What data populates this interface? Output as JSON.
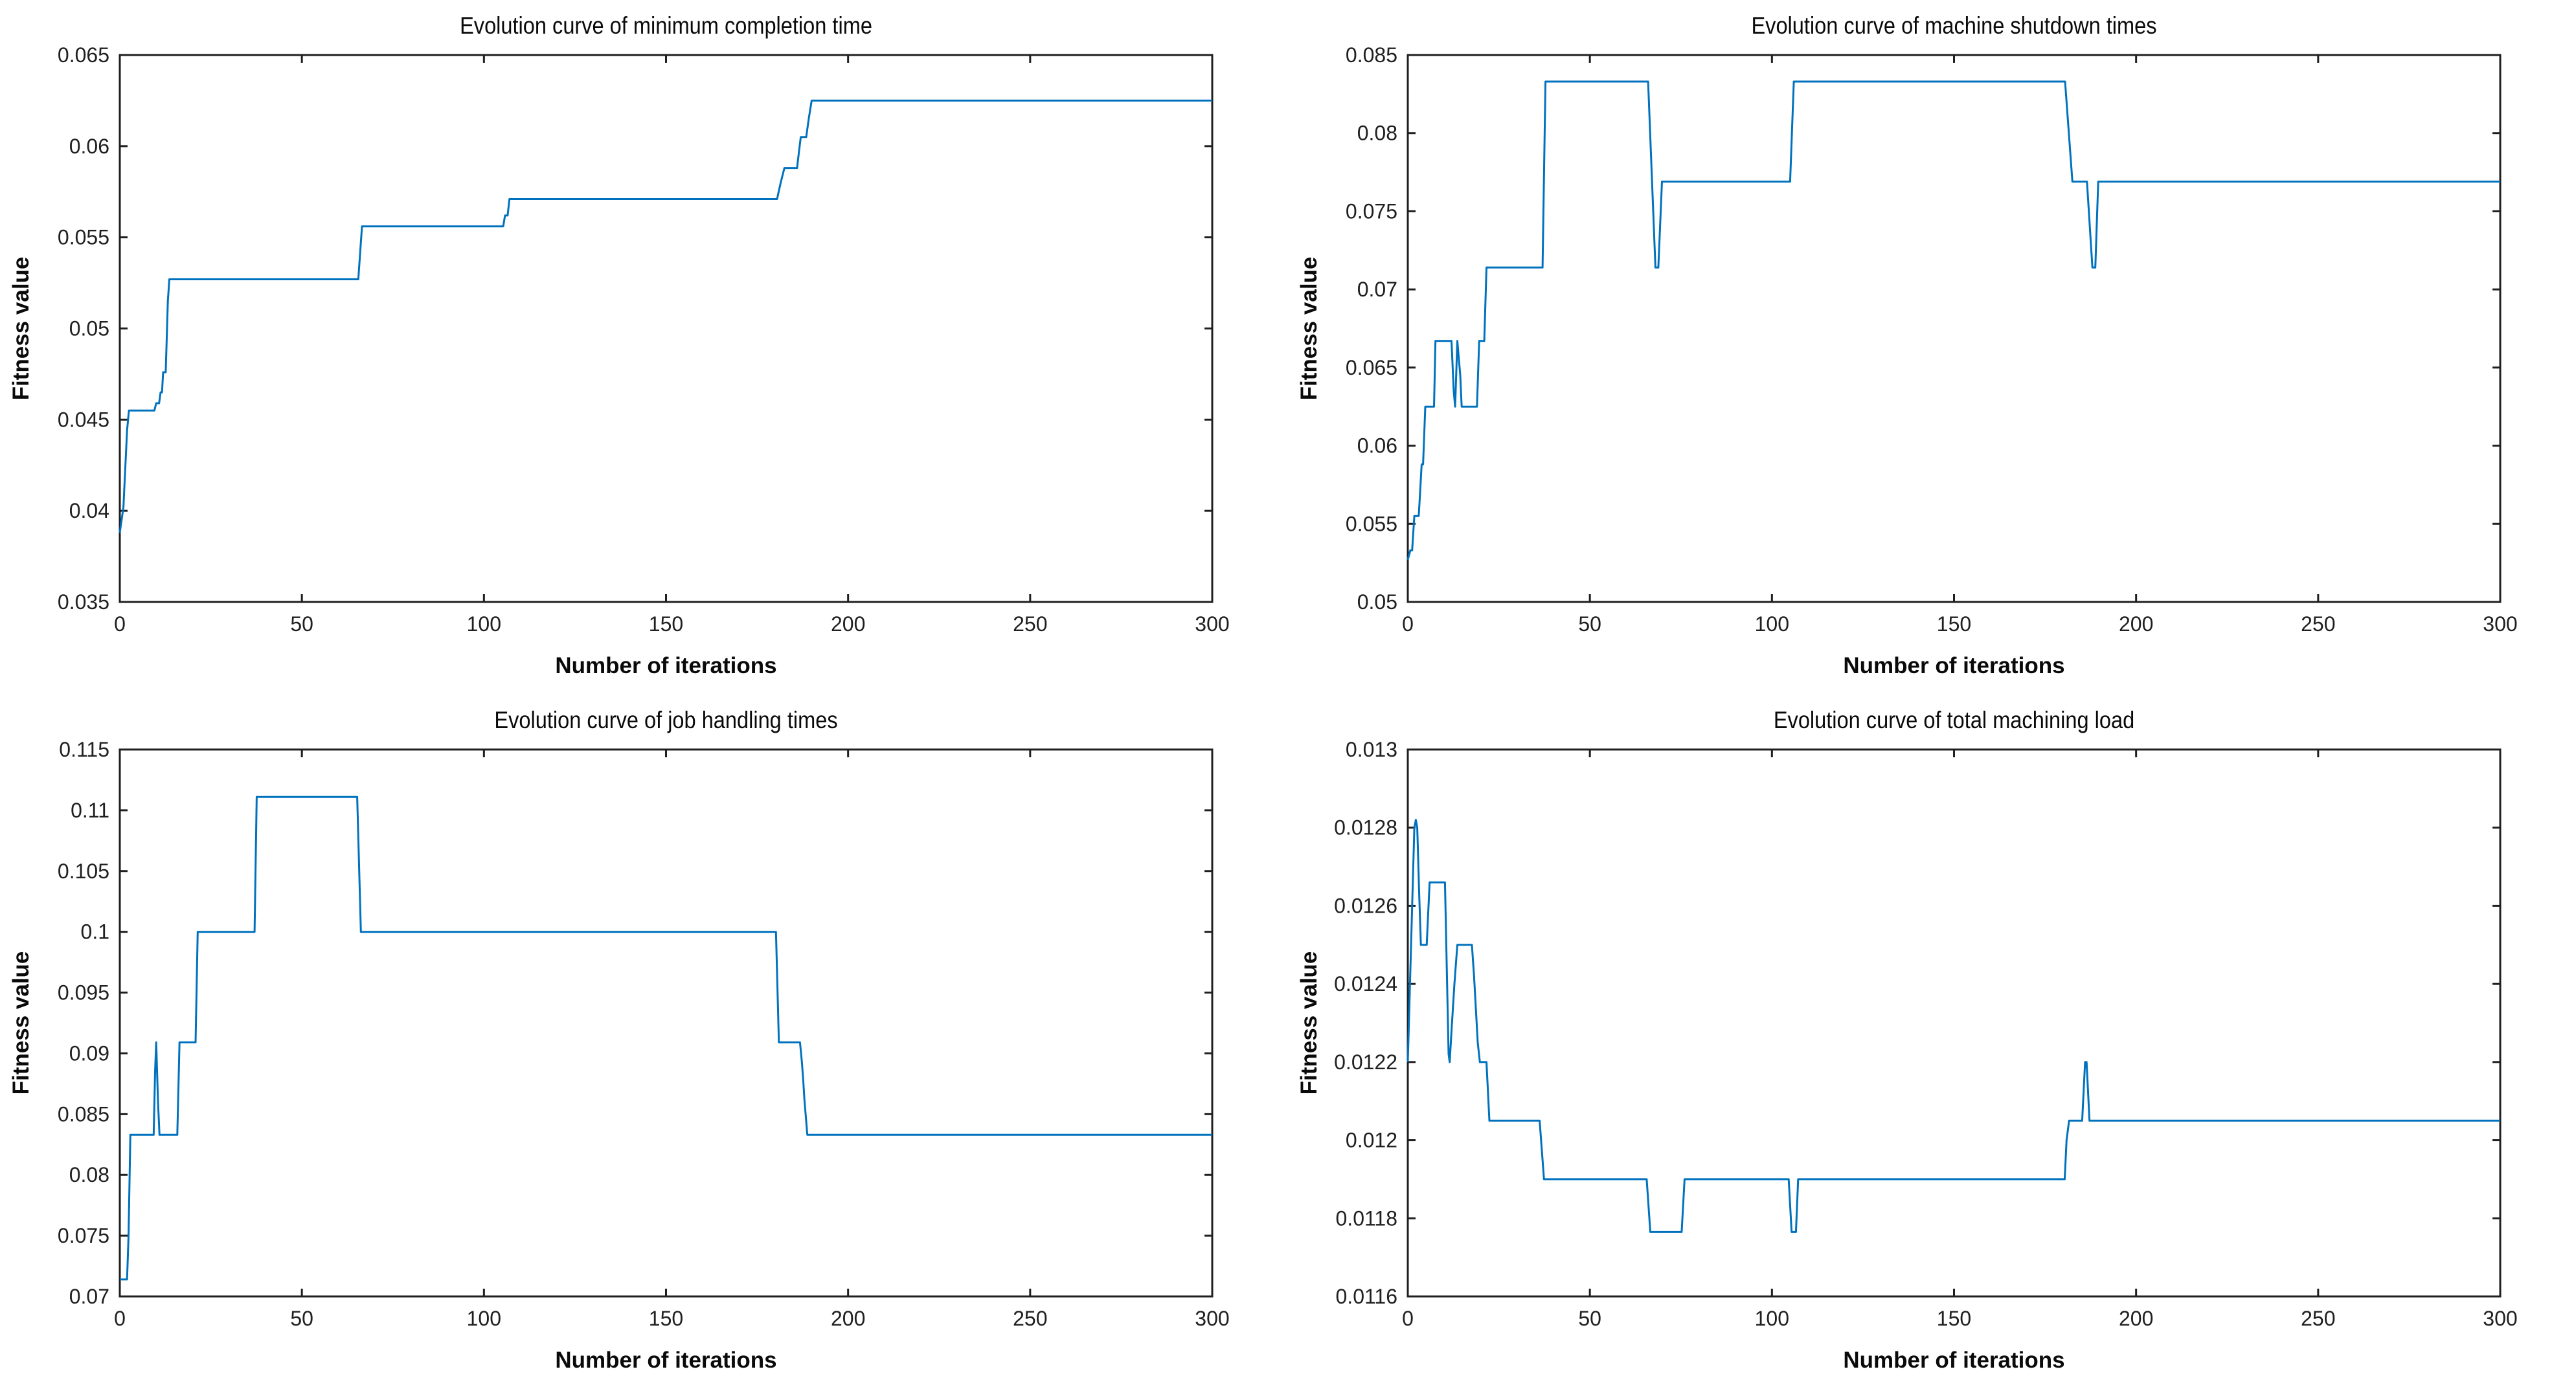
{
  "figure": {
    "background": "#ffffff",
    "layout": "2x2 grid of MATLAB-style evolution curve subplots"
  },
  "style": {
    "axis_color": "#1f1f1f",
    "text_color": "#0a0a0a",
    "line_color": "#0072BD"
  },
  "chart_data": [
    {
      "type": "line",
      "title": "Evolution curve of minimum completion time",
      "xlabel": "Number of iterations",
      "ylabel": "Fitness value",
      "xlim": [
        0,
        300
      ],
      "ylim": [
        0.035,
        0.065
      ],
      "grid": false,
      "legend": "none",
      "xticks": [
        0,
        50,
        100,
        150,
        200,
        250,
        300
      ],
      "xtick_labels": [
        "0",
        "50",
        "100",
        "150",
        "200",
        "250",
        "300"
      ],
      "yticks": [
        0.035,
        0.04,
        0.045,
        0.05,
        0.055,
        0.06,
        0.065
      ],
      "ytick_labels": [
        "0.035",
        "0.04",
        "0.045",
        "0.05",
        "0.055",
        "0.06",
        "0.065"
      ],
      "line_color": "#0072BD",
      "series": [
        {
          "name": "fitness-curve",
          "points": [
            [
              0,
              0.0388
            ],
            [
              1,
              0.0402
            ],
            [
              2,
              0.0444
            ],
            [
              2.5,
              0.0455
            ],
            [
              9.5,
              0.0455
            ],
            [
              10,
              0.0459
            ],
            [
              10.8,
              0.0459
            ],
            [
              11.2,
              0.0465
            ],
            [
              11.6,
              0.0465
            ],
            [
              11.9,
              0.0476
            ],
            [
              12.6,
              0.0476
            ],
            [
              13.2,
              0.0515
            ],
            [
              13.6,
              0.0527
            ],
            [
              65.5,
              0.0527
            ],
            [
              66.5,
              0.0556
            ],
            [
              105.3,
              0.0556
            ],
            [
              105.8,
              0.0562
            ],
            [
              106.5,
              0.0562
            ],
            [
              107,
              0.0571
            ],
            [
              180.5,
              0.0571
            ],
            [
              181.5,
              0.058
            ],
            [
              182.5,
              0.0588
            ],
            [
              186,
              0.0588
            ],
            [
              186.5,
              0.0597
            ],
            [
              187,
              0.0605
            ],
            [
              188.5,
              0.0605
            ],
            [
              189.2,
              0.0615
            ],
            [
              190,
              0.0625
            ],
            [
              300,
              0.0625
            ]
          ]
        }
      ]
    },
    {
      "type": "line",
      "title": "Evolution curve of machine shutdown times",
      "xlabel": "Number of iterations",
      "ylabel": "Fitness value",
      "xlim": [
        0,
        300
      ],
      "ylim": [
        0.05,
        0.085
      ],
      "grid": false,
      "legend": "none",
      "xticks": [
        0,
        50,
        100,
        150,
        200,
        250,
        300
      ],
      "xtick_labels": [
        "0",
        "50",
        "100",
        "150",
        "200",
        "250",
        "300"
      ],
      "yticks": [
        0.05,
        0.055,
        0.06,
        0.065,
        0.07,
        0.075,
        0.08,
        0.085
      ],
      "ytick_labels": [
        "0.05",
        "0.055",
        "0.06",
        "0.065",
        "0.07",
        "0.075",
        "0.08",
        "0.085"
      ],
      "line_color": "#0072BD",
      "series": [
        {
          "name": "fitness-curve",
          "points": [
            [
              0,
              0.0527
            ],
            [
              0.7,
              0.0533
            ],
            [
              1.2,
              0.0533
            ],
            [
              1.8,
              0.0555
            ],
            [
              3,
              0.0555
            ],
            [
              3.4,
              0.0571
            ],
            [
              3.8,
              0.0588
            ],
            [
              4.2,
              0.0588
            ],
            [
              4.8,
              0.0625
            ],
            [
              7.2,
              0.0625
            ],
            [
              7.6,
              0.0667
            ],
            [
              12,
              0.0667
            ],
            [
              12.6,
              0.0635
            ],
            [
              13,
              0.0625
            ],
            [
              13.6,
              0.0667
            ],
            [
              14.4,
              0.0645
            ],
            [
              14.8,
              0.0625
            ],
            [
              19,
              0.0625
            ],
            [
              19.6,
              0.0667
            ],
            [
              21,
              0.0667
            ],
            [
              21.6,
              0.0714
            ],
            [
              37,
              0.0714
            ],
            [
              37.8,
              0.0833
            ],
            [
              66,
              0.0833
            ],
            [
              68,
              0.0714
            ],
            [
              68.8,
              0.0714
            ],
            [
              69.8,
              0.0769
            ],
            [
              105,
              0.0769
            ],
            [
              106,
              0.0833
            ],
            [
              180.5,
              0.0833
            ],
            [
              182.5,
              0.0769
            ],
            [
              186.5,
              0.0769
            ],
            [
              188,
              0.0714
            ],
            [
              188.8,
              0.0714
            ],
            [
              189.6,
              0.0769
            ],
            [
              300,
              0.0769
            ]
          ]
        }
      ]
    },
    {
      "type": "line",
      "title": "Evolution curve of job handling times",
      "xlabel": "Number of iterations",
      "ylabel": "Fitness value",
      "xlim": [
        0,
        300
      ],
      "ylim": [
        0.07,
        0.115
      ],
      "grid": false,
      "legend": "none",
      "xticks": [
        0,
        50,
        100,
        150,
        200,
        250,
        300
      ],
      "xtick_labels": [
        "0",
        "50",
        "100",
        "150",
        "200",
        "250",
        "300"
      ],
      "yticks": [
        0.07,
        0.075,
        0.08,
        0.085,
        0.09,
        0.095,
        0.1,
        0.105,
        0.11,
        0.115
      ],
      "ytick_labels": [
        "0.07",
        "0.075",
        "0.08",
        "0.085",
        "0.09",
        "0.095",
        "0.1",
        "0.105",
        "0.11",
        "0.115"
      ],
      "line_color": "#0072BD",
      "series": [
        {
          "name": "fitness-curve",
          "points": [
            [
              0,
              0.0714
            ],
            [
              2,
              0.0714
            ],
            [
              2.4,
              0.075
            ],
            [
              2.9,
              0.0833
            ],
            [
              9.3,
              0.0833
            ],
            [
              9.7,
              0.0885
            ],
            [
              10,
              0.0909
            ],
            [
              10.5,
              0.086
            ],
            [
              10.9,
              0.0833
            ],
            [
              15.8,
              0.0833
            ],
            [
              16.4,
              0.0909
            ],
            [
              20.8,
              0.0909
            ],
            [
              21.4,
              0.1
            ],
            [
              37,
              0.1
            ],
            [
              37.6,
              0.1111
            ],
            [
              65.2,
              0.1111
            ],
            [
              66.2,
              0.1
            ],
            [
              180.2,
              0.1
            ],
            [
              181,
              0.0909
            ],
            [
              186.8,
              0.0909
            ],
            [
              187.3,
              0.0893
            ],
            [
              187.7,
              0.0877
            ],
            [
              188,
              0.0862
            ],
            [
              188.4,
              0.0848
            ],
            [
              188.8,
              0.0833
            ],
            [
              300,
              0.0833
            ]
          ]
        }
      ]
    },
    {
      "type": "line",
      "title": "Evolution curve of total machining load",
      "xlabel": "Number of iterations",
      "ylabel": "Fitness value",
      "xlim": [
        0,
        300
      ],
      "ylim": [
        0.0116,
        0.013
      ],
      "grid": false,
      "legend": "none",
      "xticks": [
        0,
        50,
        100,
        150,
        200,
        250,
        300
      ],
      "xtick_labels": [
        "0",
        "50",
        "100",
        "150",
        "200",
        "250",
        "300"
      ],
      "yticks": [
        0.0116,
        0.0118,
        0.012,
        0.0122,
        0.0124,
        0.0126,
        0.0128,
        0.013
      ],
      "ytick_labels": [
        "0.0116",
        "0.0118",
        "0.012",
        "0.0122",
        "0.0124",
        "0.0126",
        "0.0128",
        "0.013"
      ],
      "line_color": "#0072BD",
      "series": [
        {
          "name": "fitness-curve",
          "points": [
            [
              0,
              0.0122
            ],
            [
              1.8,
              0.0128
            ],
            [
              2.2,
              0.01282
            ],
            [
              2.6,
              0.0128
            ],
            [
              3.1,
              0.01264
            ],
            [
              3.6,
              0.0125
            ],
            [
              5.2,
              0.0125
            ],
            [
              6,
              0.01266
            ],
            [
              10.2,
              0.01266
            ],
            [
              10.8,
              0.0124
            ],
            [
              11.2,
              0.01222
            ],
            [
              11.5,
              0.0122
            ],
            [
              12,
              0.01228
            ],
            [
              12.8,
              0.0124
            ],
            [
              13.6,
              0.0125
            ],
            [
              17.6,
              0.0125
            ],
            [
              18.2,
              0.01242
            ],
            [
              19.2,
              0.01225
            ],
            [
              19.8,
              0.0122
            ],
            [
              21.6,
              0.0122
            ],
            [
              22.4,
              0.01205
            ],
            [
              36.2,
              0.01205
            ],
            [
              37.4,
              0.0119
            ],
            [
              65.6,
              0.0119
            ],
            [
              66.6,
              0.011765
            ],
            [
              75.2,
              0.011765
            ],
            [
              76,
              0.0119
            ],
            [
              104.6,
              0.0119
            ],
            [
              105.4,
              0.011765
            ],
            [
              106.6,
              0.011765
            ],
            [
              107.2,
              0.0119
            ],
            [
              180.4,
              0.0119
            ],
            [
              180.9,
              0.012
            ],
            [
              181.6,
              0.01205
            ],
            [
              185.2,
              0.01205
            ],
            [
              186,
              0.0122
            ],
            [
              186.4,
              0.0122
            ],
            [
              187.2,
              0.01205
            ],
            [
              300,
              0.01205
            ]
          ]
        }
      ]
    }
  ]
}
